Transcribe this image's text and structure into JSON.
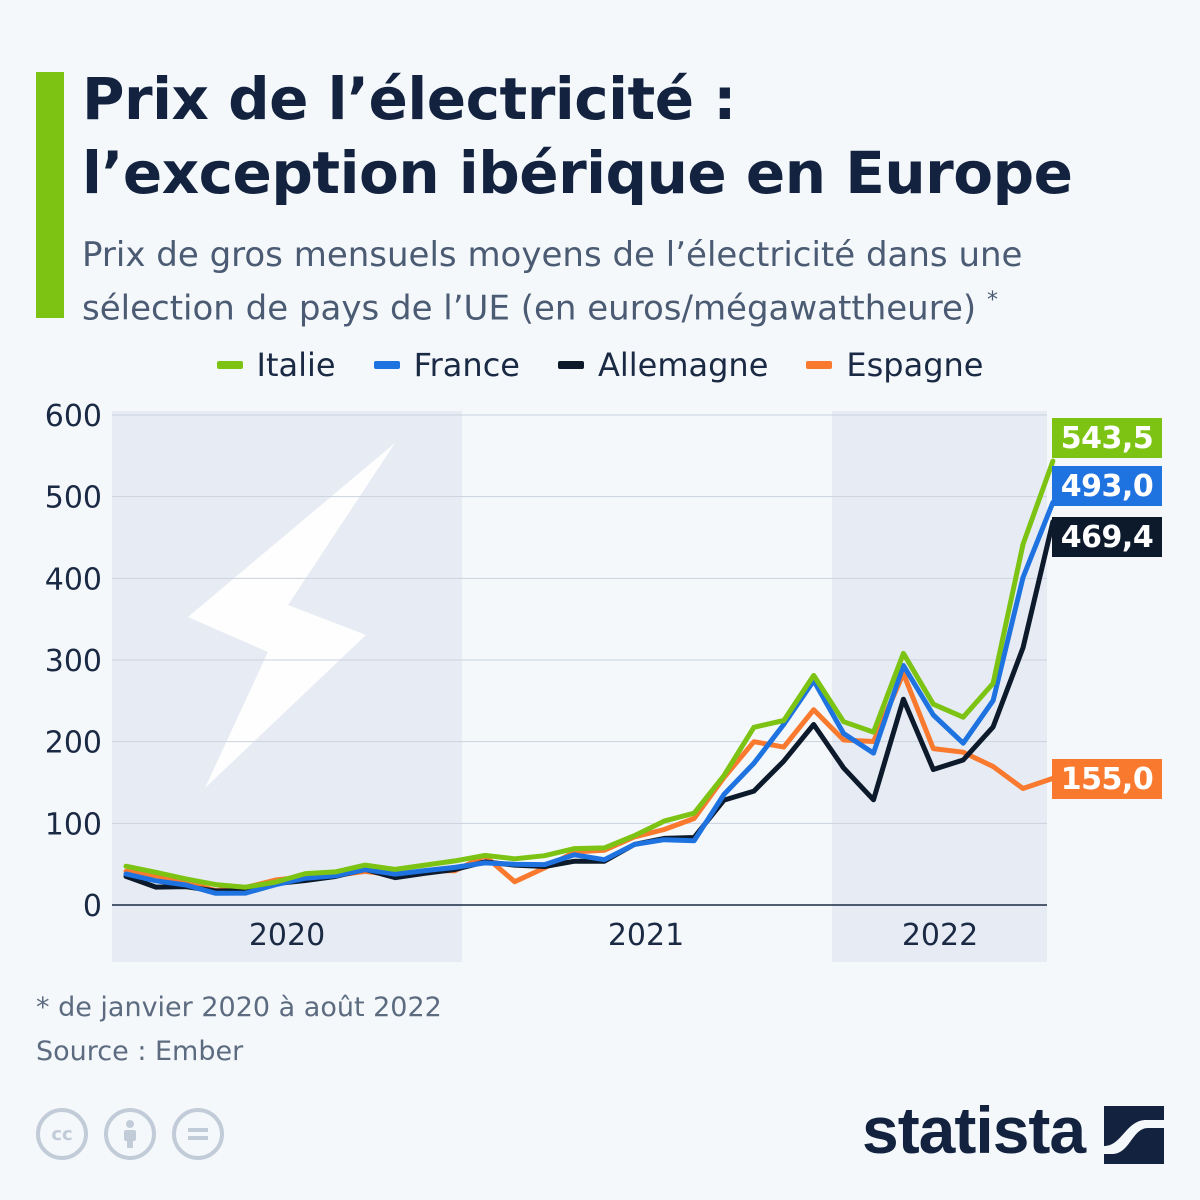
{
  "header": {
    "title_line1": "Prix de l’électricité :",
    "title_line2": "l’exception ibérique en Europe",
    "subtitle_line1": "Prix de gros mensuels moyens de l’électricité dans une",
    "subtitle_line2": "sélection de pays de l’UE (en euros/mégawattheure)",
    "subtitle_mark": "*"
  },
  "colors": {
    "accent": "#7cc313",
    "italie": "#7cc313",
    "france": "#1f73e0",
    "allemagne": "#0d1a2b",
    "espagne": "#f97a2f"
  },
  "chart_data": {
    "type": "line",
    "x_period": "janvier 2020 – août 2022 (mensuel)",
    "x_tick_labels": [
      "2020",
      "2021",
      "2022"
    ],
    "y_ticks": [
      0,
      100,
      200,
      300,
      400,
      500,
      600
    ],
    "ylim": [
      0,
      600
    ],
    "grid": true,
    "legend_position": "top",
    "end_labels": {
      "italie": "543,5",
      "france": "493,0",
      "allemagne": "469,4",
      "espagne": "155,0"
    },
    "series": [
      {
        "name": "Italie",
        "color": "#7cc313",
        "values": [
          47.5,
          40,
          32,
          25,
          21.8,
          28,
          38.5,
          40.5,
          48.8,
          43.6,
          48.8,
          54,
          60.7,
          56.6,
          60.4,
          69,
          69.9,
          84.8,
          102.7,
          112.4,
          158.6,
          217.6,
          225.9,
          281.2,
          224.5,
          211.7,
          308.1,
          245.9,
          230,
          271.3,
          441.7,
          543.5
        ]
      },
      {
        "name": "France",
        "color": "#1f73e0",
        "values": [
          38,
          29.6,
          24.5,
          14.3,
          14.6,
          24.8,
          32.8,
          35.8,
          43.5,
          37.8,
          42.1,
          46.1,
          51.5,
          50,
          49.5,
          61.5,
          55.5,
          74.1,
          79.9,
          78.6,
          135.4,
          173.5,
          221.2,
          274.7,
          210,
          186,
          293.3,
          232.6,
          198.1,
          250.3,
          401,
          493
        ]
      },
      {
        "name": "Allemagne",
        "color": "#0d1a2b",
        "values": [
          35,
          21.9,
          22.5,
          17.1,
          17.6,
          26.1,
          30,
          34.9,
          43.6,
          33.6,
          38.8,
          43.5,
          52.8,
          48.8,
          47.2,
          53.6,
          53.6,
          74.1,
          81.5,
          82.7,
          128.4,
          139.5,
          176.2,
          221,
          167.9,
          128.8,
          252,
          165.9,
          177.5,
          218.1,
          315,
          469.4
        ]
      },
      {
        "name": "Espagne",
        "color": "#f97a2f",
        "values": [
          41.1,
          35.9,
          27.7,
          17.7,
          21.3,
          30.6,
          34.6,
          36.2,
          41.1,
          36.6,
          41.9,
          41.9,
          60.2,
          28.5,
          45.4,
          65,
          67.1,
          83.3,
          92.4,
          105.9,
          156.1,
          199.9,
          193.4,
          239.2,
          202,
          200.2,
          283.3,
          191.5,
          187.1,
          169.6,
          142.7,
          155
        ]
      }
    ]
  },
  "footer": {
    "note": "* de janvier 2020 à août 2022",
    "source": "Source : Ember",
    "brand": "statista"
  },
  "icons": [
    "creative-commons-icon",
    "attribution-icon",
    "no-derivatives-icon",
    "statista-logo-icon",
    "lightning-bolt-icon"
  ]
}
